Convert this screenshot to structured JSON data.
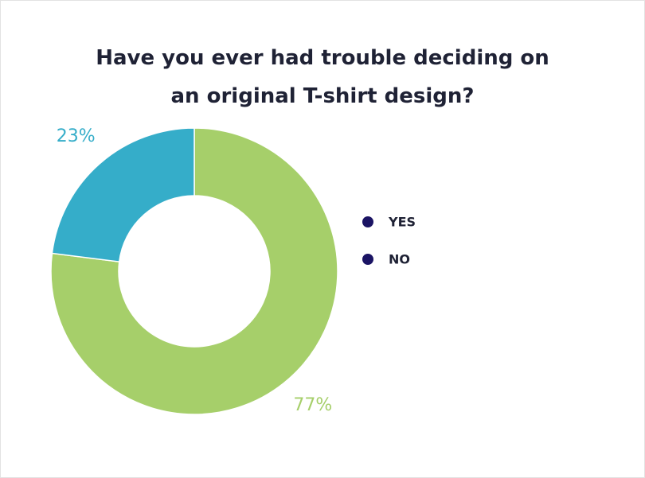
{
  "chart_data": {
    "type": "donut",
    "title": "Have you ever had trouble deciding on an original T-shirt design?",
    "categories": [
      "YES",
      "NO"
    ],
    "values": [
      77,
      23
    ],
    "value_labels": [
      "77%",
      "23%"
    ],
    "colors": [
      "#a6cf6a",
      "#35adc9"
    ],
    "legend_color": "#1b1464",
    "legend": "right"
  }
}
